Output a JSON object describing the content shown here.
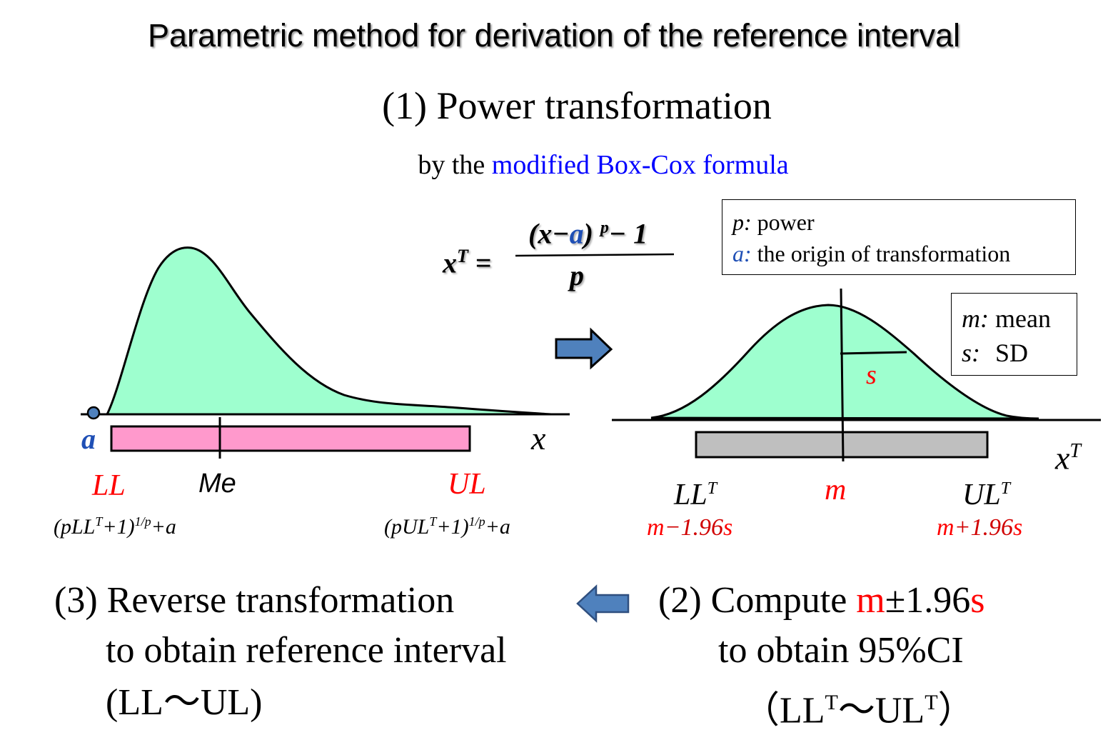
{
  "title": "Parametric method for derivation of the reference interval",
  "step1": {
    "heading": "(1) Power transformation",
    "sub_prefix": "by the",
    "sub_highlight": "modified Box-Cox formula"
  },
  "formula": {
    "lhs": "x",
    "lhs_sup": "T",
    "equals": "=",
    "num_open": "(x",
    "num_minus": "−",
    "num_a": "a",
    "num_close": ")",
    "num_p": "p",
    "num_tail": "− 1",
    "den": "p"
  },
  "legend_power": {
    "p_key": "p:",
    "p_val": "power",
    "a_key": "a:",
    "a_val": "the origin of transformation"
  },
  "legend_stats": {
    "m_key": "m:",
    "m_val": "mean",
    "s_key": "s:",
    "s_val": "SD"
  },
  "left_plot": {
    "a_label": "a",
    "x_label": "x",
    "ll_label": "LL",
    "me_label": "Me",
    "ul_label": "UL",
    "ll_formula": {
      "pre": "(pLL",
      "sup1": "T",
      "mid": "+1)",
      "sup2": "1/p",
      "post": "+a"
    },
    "ul_formula": {
      "pre": "(pUL",
      "sup1": "T",
      "mid": "+1)",
      "sup2": "1/p",
      "post": "+a"
    }
  },
  "right_plot": {
    "s_label": "s",
    "x_label": "x",
    "x_sup": "T",
    "llt_label": "LL",
    "llt_sup": "T",
    "m_label": "m",
    "ult_label": "UL",
    "ult_sup": "T",
    "llt_formula": {
      "m": "m",
      "mid": "−1.96",
      "s": "s"
    },
    "ult_formula": {
      "m": "m",
      "mid": "+1.96",
      "s": "s"
    }
  },
  "step3": {
    "line1": "(3) Reverse transformation",
    "line2": "to obtain reference interval",
    "line3": "(LL〜UL)"
  },
  "step2": {
    "prefix": "(2) Compute ",
    "m": "m",
    "pm": "±1.96",
    "s": "s",
    "line2": "to obtain 95%CI",
    "l3_open": "（LL",
    "l3_sup1": "T",
    "l3_mid": "〜UL",
    "l3_sup2": "T",
    "l3_close": "）"
  },
  "colors": {
    "curve_fill": "#9effcf",
    "interval_bar_left": "#ff99cc",
    "interval_bar_right": "#bfbfbf",
    "arrow": "#4f81bd",
    "accent_red": "#ff0000",
    "accent_blue": "#0000ff",
    "origin_blue": "#1f4fb5"
  },
  "icons": [
    "arrow-right-icon",
    "arrow-left-icon",
    "origin-point-icon"
  ]
}
